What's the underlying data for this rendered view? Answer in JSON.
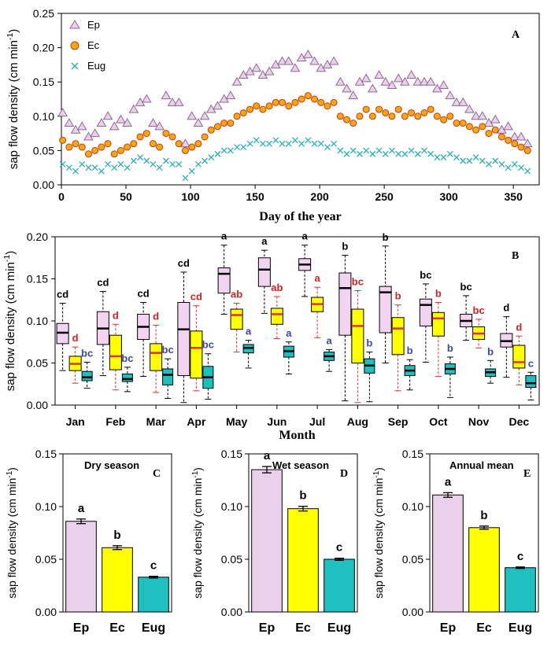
{
  "colors": {
    "ep_fill": "#ead0ea",
    "ep_stroke": "#8f6a94",
    "ec_fill": "#ffa800",
    "ec_stroke": "#c0392b",
    "eug_stroke": "#2bb0b8",
    "box_ep": "#f2d4f0",
    "box_ec": "#ffff00",
    "box_eug": "#1fbfbf",
    "median_ec": "#e03030",
    "whisker_ec": "#e03030",
    "letter_ep": "#000000",
    "letter_ec": "#d42020",
    "letter_eug": "#3a47a8",
    "bar_ep": "#ead0ea",
    "bar_ec": "#ffff00",
    "bar_eug": "#20c0c0"
  },
  "chart_data": [
    {
      "panel": "A",
      "type": "scatter",
      "xlabel": "Day of the year",
      "ylabel": "sap flow density (cm min-1)",
      "xlim": [
        0,
        370
      ],
      "ylim": [
        0,
        0.25
      ],
      "xticks": [
        "0",
        "50",
        "100",
        "150",
        "200",
        "250",
        "300",
        "350"
      ],
      "yticks": [
        "0.00",
        "0.05",
        "0.10",
        "0.15",
        "0.20",
        "0.25"
      ],
      "legend": "top-left",
      "series": [
        {
          "name": "Ep",
          "marker": "triangle",
          "x": [
            1,
            6,
            11,
            16,
            21,
            26,
            31,
            36,
            41,
            46,
            51,
            56,
            61,
            66,
            71,
            76,
            81,
            86,
            91,
            96,
            101,
            106,
            111,
            116,
            121,
            126,
            131,
            136,
            141,
            146,
            151,
            156,
            161,
            166,
            171,
            176,
            181,
            186,
            191,
            196,
            201,
            206,
            211,
            216,
            221,
            226,
            231,
            236,
            241,
            246,
            251,
            256,
            261,
            266,
            271,
            276,
            281,
            286,
            291,
            296,
            301,
            306,
            311,
            316,
            321,
            326,
            331,
            336,
            341,
            346,
            351,
            356,
            361
          ],
          "y": [
            0.105,
            0.09,
            0.08,
            0.085,
            0.07,
            0.075,
            0.09,
            0.1,
            0.085,
            0.095,
            0.09,
            0.11,
            0.12,
            0.125,
            0.09,
            0.085,
            0.13,
            0.12,
            0.12,
            0.06,
            0.1,
            0.09,
            0.1,
            0.11,
            0.115,
            0.125,
            0.13,
            0.15,
            0.16,
            0.165,
            0.17,
            0.16,
            0.165,
            0.175,
            0.18,
            0.18,
            0.17,
            0.185,
            0.19,
            0.18,
            0.17,
            0.175,
            0.18,
            0.15,
            0.14,
            0.13,
            0.15,
            0.155,
            0.14,
            0.16,
            0.15,
            0.145,
            0.155,
            0.15,
            0.16,
            0.15,
            0.15,
            0.15,
            0.14,
            0.145,
            0.13,
            0.12,
            0.12,
            0.11,
            0.1,
            0.1,
            0.09,
            0.095,
            0.08,
            0.085,
            0.07,
            0.07,
            0.06
          ]
        },
        {
          "name": "Ec",
          "marker": "circle",
          "x": [
            1,
            6,
            11,
            16,
            21,
            26,
            31,
            36,
            41,
            46,
            51,
            56,
            61,
            66,
            71,
            76,
            81,
            86,
            91,
            96,
            101,
            106,
            111,
            116,
            121,
            126,
            131,
            136,
            141,
            146,
            151,
            156,
            161,
            166,
            171,
            176,
            181,
            186,
            191,
            196,
            201,
            206,
            211,
            216,
            221,
            226,
            231,
            236,
            241,
            246,
            251,
            256,
            261,
            266,
            271,
            276,
            281,
            286,
            291,
            296,
            301,
            306,
            311,
            316,
            321,
            326,
            331,
            336,
            341,
            346,
            351,
            356,
            361
          ],
          "y": [
            0.065,
            0.055,
            0.06,
            0.055,
            0.045,
            0.05,
            0.055,
            0.06,
            0.045,
            0.05,
            0.055,
            0.06,
            0.07,
            0.075,
            0.06,
            0.055,
            0.075,
            0.07,
            0.06,
            0.05,
            0.055,
            0.06,
            0.07,
            0.08,
            0.085,
            0.09,
            0.09,
            0.1,
            0.105,
            0.11,
            0.115,
            0.11,
            0.115,
            0.12,
            0.12,
            0.115,
            0.12,
            0.125,
            0.13,
            0.125,
            0.12,
            0.115,
            0.12,
            0.1,
            0.095,
            0.09,
            0.1,
            0.11,
            0.1,
            0.11,
            0.105,
            0.1,
            0.11,
            0.1,
            0.105,
            0.1,
            0.105,
            0.11,
            0.1,
            0.095,
            0.1,
            0.09,
            0.09,
            0.085,
            0.08,
            0.085,
            0.075,
            0.08,
            0.07,
            0.065,
            0.06,
            0.055,
            0.05
          ]
        },
        {
          "name": "Eug",
          "marker": "cross",
          "x": [
            1,
            6,
            11,
            16,
            21,
            26,
            31,
            36,
            41,
            46,
            51,
            56,
            61,
            66,
            71,
            76,
            81,
            86,
            91,
            96,
            101,
            106,
            111,
            116,
            121,
            126,
            131,
            136,
            141,
            146,
            151,
            156,
            161,
            166,
            171,
            176,
            181,
            186,
            191,
            196,
            201,
            206,
            211,
            216,
            221,
            226,
            231,
            236,
            241,
            246,
            251,
            256,
            261,
            266,
            271,
            276,
            281,
            286,
            291,
            296,
            301,
            306,
            311,
            316,
            321,
            326,
            331,
            336,
            341,
            346,
            351,
            356,
            361
          ],
          "y": [
            0.03,
            0.025,
            0.02,
            0.03,
            0.025,
            0.025,
            0.02,
            0.03,
            0.025,
            0.03,
            0.025,
            0.035,
            0.04,
            0.035,
            0.03,
            0.025,
            0.035,
            0.03,
            0.03,
            0.01,
            0.02,
            0.03,
            0.035,
            0.04,
            0.045,
            0.05,
            0.05,
            0.055,
            0.055,
            0.06,
            0.065,
            0.06,
            0.06,
            0.065,
            0.06,
            0.06,
            0.065,
            0.06,
            0.065,
            0.06,
            0.06,
            0.055,
            0.06,
            0.05,
            0.045,
            0.05,
            0.045,
            0.05,
            0.045,
            0.05,
            0.045,
            0.05,
            0.045,
            0.045,
            0.05,
            0.045,
            0.05,
            0.045,
            0.04,
            0.04,
            0.045,
            0.04,
            0.035,
            0.035,
            0.04,
            0.035,
            0.03,
            0.035,
            0.03,
            0.025,
            0.03,
            0.025,
            0.02
          ]
        }
      ],
      "legend_entries": [
        "Ep",
        "Ec",
        "Eug"
      ],
      "panel_label": "A"
    },
    {
      "panel": "B",
      "type": "box",
      "xlabel": "Month",
      "ylabel": "sap flow density (cm min-1)",
      "ylim": [
        0,
        0.2
      ],
      "yticks": [
        "0.00",
        "0.05",
        "0.10",
        "0.15",
        "0.20"
      ],
      "categories": [
        "Jan",
        "Feb",
        "Mar",
        "Apr",
        "May",
        "Jun",
        "Jul",
        "Aug",
        "Sep",
        "Oct",
        "Nov",
        "Dec"
      ],
      "series": [
        {
          "name": "Ep",
          "boxes": [
            {
              "min": 0.041,
              "q1": 0.073,
              "median": 0.086,
              "q3": 0.097,
              "max": 0.121,
              "letter": "cd"
            },
            {
              "min": 0.035,
              "q1": 0.072,
              "median": 0.091,
              "q3": 0.111,
              "max": 0.135,
              "letter": "cd"
            },
            {
              "min": 0.034,
              "q1": 0.078,
              "median": 0.093,
              "q3": 0.108,
              "max": 0.122,
              "letter": "cd"
            },
            {
              "min": 0.003,
              "q1": 0.035,
              "median": 0.09,
              "q3": 0.122,
              "max": 0.158,
              "letter": "cd"
            },
            {
              "min": 0.108,
              "q1": 0.133,
              "median": 0.156,
              "q3": 0.163,
              "max": 0.19,
              "letter": "a"
            },
            {
              "min": 0.109,
              "q1": 0.141,
              "median": 0.161,
              "q3": 0.175,
              "max": 0.184,
              "letter": "a"
            },
            {
              "min": 0.129,
              "q1": 0.16,
              "median": 0.167,
              "q3": 0.174,
              "max": 0.19,
              "letter": "a"
            },
            {
              "min": 0.005,
              "q1": 0.083,
              "median": 0.139,
              "q3": 0.157,
              "max": 0.178,
              "letter": "b"
            },
            {
              "min": 0.05,
              "q1": 0.086,
              "median": 0.134,
              "q3": 0.141,
              "max": 0.189,
              "letter": "b"
            },
            {
              "min": 0.051,
              "q1": 0.094,
              "median": 0.119,
              "q3": 0.126,
              "max": 0.144,
              "letter": "bc"
            },
            {
              "min": 0.077,
              "q1": 0.093,
              "median": 0.1,
              "q3": 0.108,
              "max": 0.13,
              "letter": "bc"
            },
            {
              "min": 0.033,
              "q1": 0.069,
              "median": 0.076,
              "q3": 0.085,
              "max": 0.105,
              "letter": "d"
            }
          ]
        },
        {
          "name": "Ec",
          "boxes": [
            {
              "min": 0.026,
              "q1": 0.041,
              "median": 0.049,
              "q3": 0.058,
              "max": 0.069,
              "letter": "d"
            },
            {
              "min": 0.018,
              "q1": 0.042,
              "median": 0.058,
              "q3": 0.083,
              "max": 0.096,
              "letter": "d"
            },
            {
              "min": 0.015,
              "q1": 0.041,
              "median": 0.062,
              "q3": 0.073,
              "max": 0.095,
              "letter": "d"
            },
            {
              "min": 0.017,
              "q1": 0.032,
              "median": 0.068,
              "q3": 0.088,
              "max": 0.118,
              "letter": "cd"
            },
            {
              "min": 0.063,
              "q1": 0.09,
              "median": 0.107,
              "q3": 0.114,
              "max": 0.121,
              "letter": "ab"
            },
            {
              "min": 0.079,
              "q1": 0.096,
              "median": 0.108,
              "q3": 0.115,
              "max": 0.129,
              "letter": "ab"
            },
            {
              "min": 0.08,
              "q1": 0.111,
              "median": 0.12,
              "q3": 0.128,
              "max": 0.14,
              "letter": "a"
            },
            {
              "min": 0.003,
              "q1": 0.05,
              "median": 0.094,
              "q3": 0.114,
              "max": 0.136,
              "letter": "bc"
            },
            {
              "min": 0.017,
              "q1": 0.06,
              "median": 0.091,
              "q3": 0.104,
              "max": 0.119,
              "letter": "b"
            },
            {
              "min": 0.034,
              "q1": 0.082,
              "median": 0.103,
              "q3": 0.11,
              "max": 0.122,
              "letter": "b"
            },
            {
              "min": 0.068,
              "q1": 0.078,
              "median": 0.085,
              "q3": 0.093,
              "max": 0.102,
              "letter": "bc"
            },
            {
              "min": 0.024,
              "q1": 0.044,
              "median": 0.051,
              "q3": 0.071,
              "max": 0.082,
              "letter": "d"
            }
          ]
        },
        {
          "name": "Eug",
          "boxes": [
            {
              "min": 0.02,
              "q1": 0.029,
              "median": 0.033,
              "q3": 0.04,
              "max": 0.051,
              "letter": "bc"
            },
            {
              "min": 0.016,
              "q1": 0.028,
              "median": 0.031,
              "q3": 0.037,
              "max": 0.045,
              "letter": "bc"
            },
            {
              "min": 0.008,
              "q1": 0.024,
              "median": 0.036,
              "q3": 0.043,
              "max": 0.055,
              "letter": "bc"
            },
            {
              "min": 0.007,
              "q1": 0.02,
              "median": 0.033,
              "q3": 0.046,
              "max": 0.061,
              "letter": "bc"
            },
            {
              "min": 0.044,
              "q1": 0.062,
              "median": 0.068,
              "q3": 0.072,
              "max": 0.077,
              "letter": "a"
            },
            {
              "min": 0.037,
              "q1": 0.057,
              "median": 0.064,
              "q3": 0.07,
              "max": 0.075,
              "letter": "a"
            },
            {
              "min": 0.04,
              "q1": 0.053,
              "median": 0.058,
              "q3": 0.063,
              "max": 0.066,
              "letter": "a"
            },
            {
              "min": 0.004,
              "q1": 0.038,
              "median": 0.047,
              "q3": 0.055,
              "max": 0.063,
              "letter": "b"
            },
            {
              "min": 0.018,
              "q1": 0.035,
              "median": 0.041,
              "q3": 0.047,
              "max": 0.054,
              "letter": "b"
            },
            {
              "min": 0.009,
              "q1": 0.037,
              "median": 0.043,
              "q3": 0.049,
              "max": 0.057,
              "letter": "b"
            },
            {
              "min": 0.026,
              "q1": 0.034,
              "median": 0.039,
              "q3": 0.043,
              "max": 0.053,
              "letter": "b"
            },
            {
              "min": 0.006,
              "q1": 0.021,
              "median": 0.026,
              "q3": 0.035,
              "max": 0.039,
              "letter": "c"
            }
          ]
        }
      ],
      "panel_label": "B"
    },
    {
      "panel": "C",
      "type": "bar",
      "title": "Dry season",
      "ylabel": "sap flow density (cm min-1)",
      "ylim": [
        0,
        0.15
      ],
      "yticks": [
        "0.00",
        "0.05",
        "0.10",
        "0.15"
      ],
      "categories": [
        "Ep",
        "Ec",
        "Eug"
      ],
      "values": [
        0.086,
        0.061,
        0.033
      ],
      "errors": [
        0.0022,
        0.0018,
        0.0008
      ],
      "letters": [
        "a",
        "b",
        "c"
      ],
      "panel_label": "C"
    },
    {
      "panel": "D",
      "type": "bar",
      "title": "Wet season",
      "ylabel": "sap flow density (cm min-1)",
      "ylim": [
        0,
        0.15
      ],
      "yticks": [
        "0.00",
        "0.05",
        "0.10",
        "0.15"
      ],
      "categories": [
        "Ep",
        "Ec",
        "Eug"
      ],
      "values": [
        0.135,
        0.098,
        0.05
      ],
      "errors": [
        0.003,
        0.0022,
        0.001
      ],
      "letters": [
        "a",
        "b",
        "c"
      ],
      "panel_label": "D"
    },
    {
      "panel": "E",
      "type": "bar",
      "title": "Annual mean",
      "ylabel": "sap flow density (cm min-1)",
      "ylim": [
        0,
        0.15
      ],
      "yticks": [
        "0.00",
        "0.05",
        "0.10",
        "0.15"
      ],
      "categories": [
        "Ep",
        "Ec",
        "Eug"
      ],
      "values": [
        0.111,
        0.08,
        0.042
      ],
      "errors": [
        0.0022,
        0.0015,
        0.0007
      ],
      "letters": [
        "a",
        "b",
        "c"
      ],
      "panel_label": "E"
    }
  ]
}
